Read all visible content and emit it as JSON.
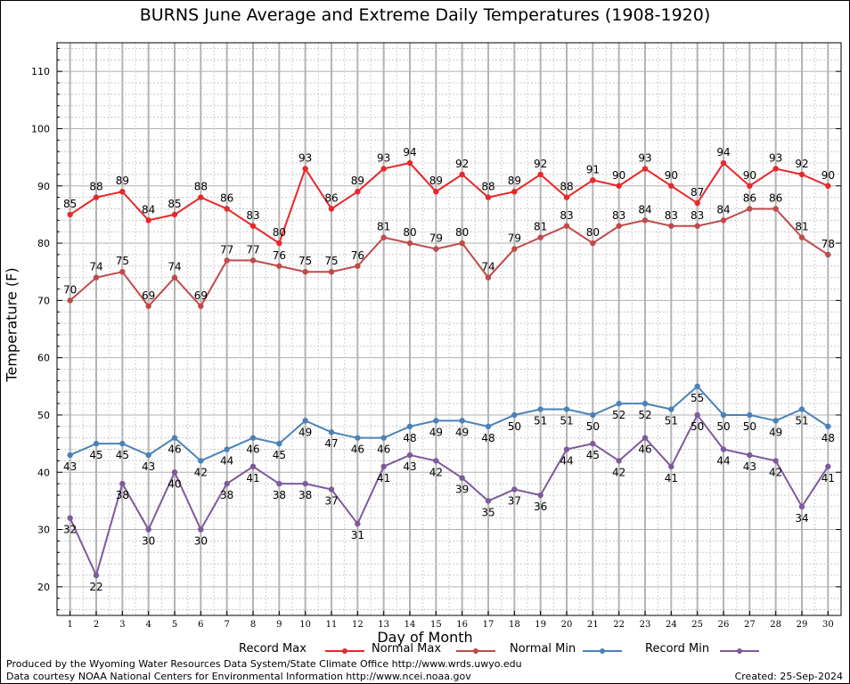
{
  "chart_data": {
    "type": "line",
    "title": "BURNS June Average and Extreme Daily Temperatures (1908-1920)",
    "xlabel": "Day of Month",
    "ylabel": "Temperature (F)",
    "x": [
      1,
      2,
      3,
      4,
      5,
      6,
      7,
      8,
      9,
      10,
      11,
      12,
      13,
      14,
      15,
      16,
      17,
      18,
      19,
      20,
      21,
      22,
      23,
      24,
      25,
      26,
      27,
      28,
      29,
      30
    ],
    "xlim": [
      0.5,
      30.5
    ],
    "ylim": [
      15,
      115
    ],
    "yticks": [
      20,
      30,
      40,
      50,
      60,
      70,
      80,
      90,
      100,
      110
    ],
    "grid": true,
    "legend_position": "bottom",
    "series": [
      {
        "name": "Record Max",
        "color": "#e8282b",
        "values": [
          85,
          88,
          89,
          84,
          85,
          88,
          86,
          83,
          80,
          93,
          86,
          89,
          93,
          94,
          89,
          92,
          88,
          89,
          92,
          88,
          91,
          90,
          93,
          90,
          87,
          94,
          90,
          93,
          92,
          90
        ]
      },
      {
        "name": "Normal Max",
        "color": "#c04a4a",
        "values": [
          70,
          74,
          75,
          69,
          74,
          69,
          77,
          77,
          76,
          75,
          75,
          76,
          81,
          80,
          79,
          80,
          74,
          79,
          81,
          83,
          80,
          83,
          84,
          83,
          83,
          84,
          86,
          86,
          81,
          78
        ]
      },
      {
        "name": "Normal Min",
        "color": "#4a82b8",
        "values": [
          43,
          45,
          45,
          43,
          46,
          42,
          44,
          46,
          45,
          49,
          47,
          46,
          46,
          48,
          49,
          49,
          48,
          50,
          51,
          51,
          50,
          52,
          52,
          51,
          55,
          50,
          50,
          49,
          51,
          48
        ]
      },
      {
        "name": "Record Min",
        "color": "#7e5a9c",
        "values": [
          32,
          22,
          38,
          30,
          40,
          30,
          38,
          41,
          38,
          38,
          37,
          31,
          41,
          43,
          42,
          39,
          35,
          37,
          36,
          44,
          45,
          42,
          46,
          41,
          50,
          44,
          43,
          42,
          34,
          41
        ]
      }
    ]
  },
  "footer": {
    "credit_line1": "Produced by the Wyoming Water Resources Data System/State Climate Office http://www.wrds.uwyo.edu",
    "credit_line2": "Data courtesy NOAA National Centers for Environmental Information http://www.ncei.noaa.gov",
    "created": "Created:  25-Sep-2024"
  }
}
